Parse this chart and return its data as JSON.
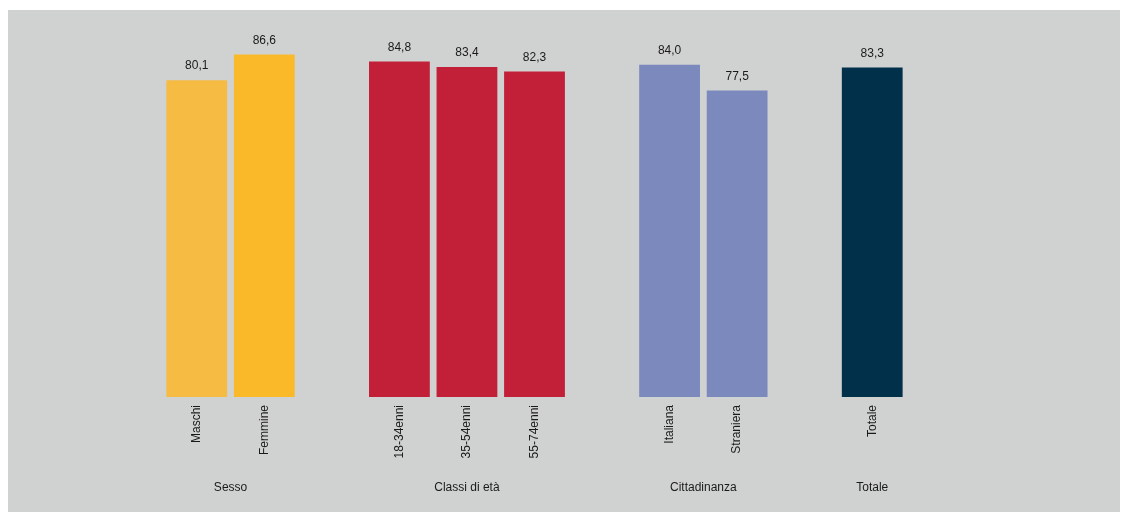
{
  "chart_data": {
    "type": "bar",
    "categories": [
      "Maschi",
      "Femmine",
      null,
      "18-34enni",
      "35-54enni",
      "55-74enni",
      null,
      "Italiana",
      "Straniera",
      null,
      "Totale"
    ],
    "values": [
      80.1,
      86.6,
      null,
      84.8,
      83.4,
      82.3,
      null,
      84.0,
      77.5,
      null,
      83.3
    ],
    "colors": [
      "#f6bb43",
      "#f9b928",
      null,
      "#c21f39",
      "#c21f39",
      "#c21f39",
      null,
      "#7b89bd",
      "#7b89bd",
      null,
      "#00304a"
    ],
    "value_labels": [
      "80,1",
      "86,6",
      null,
      "84,8",
      "83,4",
      "82,3",
      null,
      "84,0",
      "77,5",
      null,
      "83,3"
    ],
    "annotations": [
      "Sesso",
      "Classi di età",
      "Cittadinanza",
      "Totale"
    ],
    "grid": false,
    "legend": false
  }
}
